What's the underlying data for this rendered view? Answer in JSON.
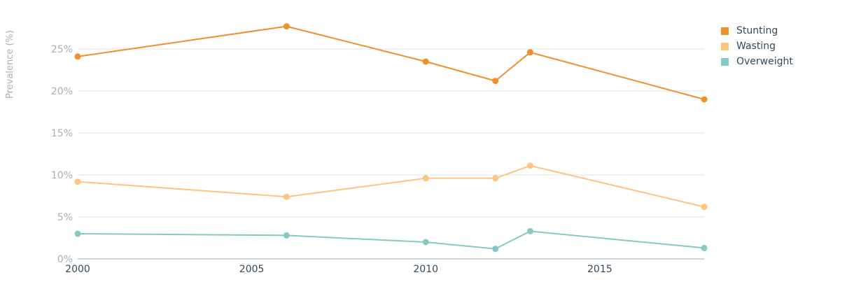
{
  "chart_data": {
    "type": "line",
    "title": "",
    "xlabel": "",
    "ylabel": "Prevalence (%)",
    "xlim": [
      2000,
      2018
    ],
    "ylim": [
      0,
      30
    ],
    "grid": true,
    "legend_placement": "top-right",
    "x_ticks": [
      2000,
      2005,
      2010,
      2015
    ],
    "y_ticks": [
      {
        "value": 0,
        "label": "0%"
      },
      {
        "value": 5,
        "label": "5%"
      },
      {
        "value": 10,
        "label": "10%"
      },
      {
        "value": 15,
        "label": "15%"
      },
      {
        "value": 20,
        "label": "20%"
      },
      {
        "value": 25,
        "label": "25%"
      }
    ],
    "series": [
      {
        "name": "Stunting",
        "color": "#f28e2b",
        "x": [
          2000,
          2006,
          2010,
          2012,
          2013,
          2018
        ],
        "values": [
          24.1,
          27.7,
          23.5,
          21.2,
          24.6,
          19.0
        ]
      },
      {
        "name": "Wasting",
        "color": "#fdc57d",
        "x": [
          2000,
          2006,
          2010,
          2012,
          2013,
          2018
        ],
        "values": [
          9.2,
          7.4,
          9.6,
          9.6,
          11.1,
          6.2
        ]
      },
      {
        "name": "Overweight",
        "color": "#86c8c3",
        "x": [
          2000,
          2006,
          2010,
          2012,
          2013,
          2018
        ],
        "values": [
          3.0,
          2.8,
          2.0,
          1.2,
          3.3,
          1.3
        ]
      }
    ]
  }
}
